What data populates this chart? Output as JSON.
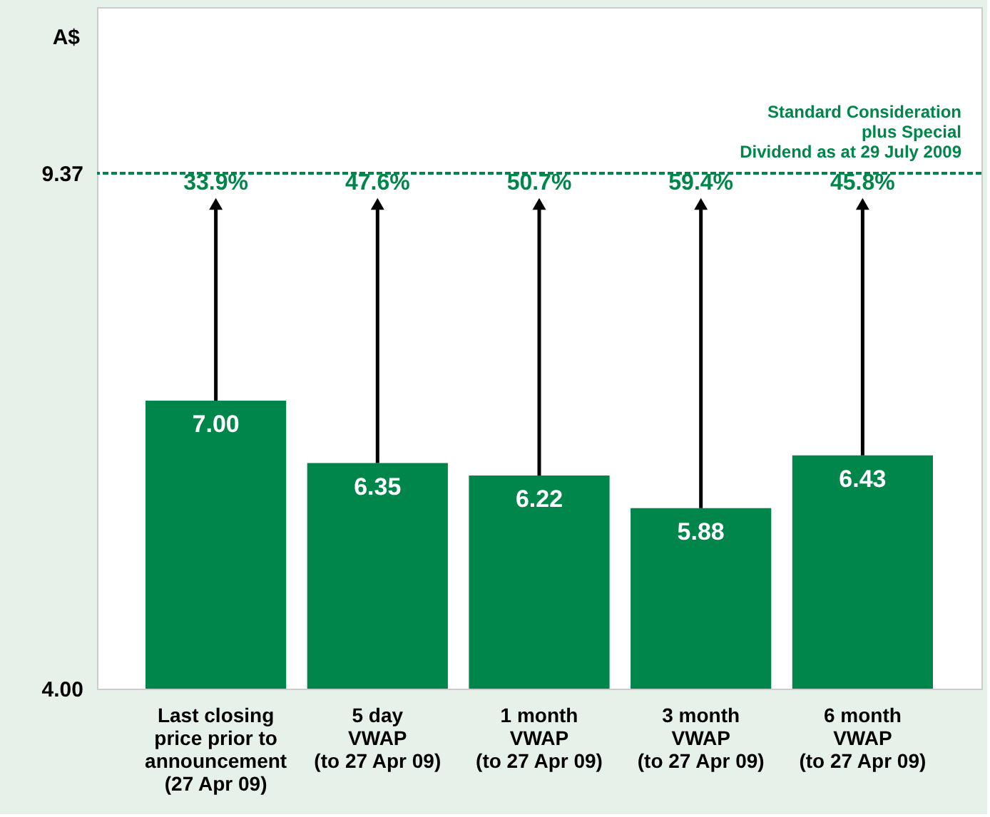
{
  "chart_data": {
    "type": "bar",
    "ylabel": "A$",
    "categories": [
      "Last closing\nprice prior to\nannouncement\n(27 Apr 09)",
      "5 day\nVWAP\n(to 27 Apr 09)",
      "1 month\nVWAP\n(to 27 Apr 09)",
      "3 month\nVWAP\n(to 27 Apr 09)",
      "6 month\nVWAP\n(to 27 Apr 09)"
    ],
    "values": [
      7.0,
      6.35,
      6.22,
      5.88,
      6.43
    ],
    "color": "#00854a",
    "value_labels": [
      "7.00",
      "6.35",
      "6.22",
      "5.88",
      "6.43"
    ],
    "ylim": [
      4,
      11.1
    ],
    "yticks": [
      {
        "value": 4,
        "label": "4.00"
      },
      {
        "value": 9.37,
        "label": "9.37"
      }
    ],
    "grid": false,
    "ref_lines": [
      {
        "axis": "y",
        "value": 9.37,
        "label": "Standard Consideration\nplus Special\nDividend as at 29 July 2009",
        "color": "#00854a",
        "line_style": "dashed"
      }
    ],
    "annotations": [
      {
        "text": "33.9%",
        "x": "Last closing\nprice prior to\nannouncement\n(27 Apr 09)",
        "y": 9.05
      },
      {
        "text": "47.6%",
        "x": "5 day\nVWAP\n(to 27 Apr 09)",
        "y": 9.05
      },
      {
        "text": "50.7%",
        "x": "1 month\nVWAP\n(to 27 Apr 09)",
        "y": 9.05
      },
      {
        "text": "59.4%",
        "x": "3 month\nVWAP\n(to 27 Apr 09)",
        "y": 9.05
      },
      {
        "text": "45.8%",
        "x": "6 month\nVWAP\n(to 27 Apr 09)",
        "y": 9.05
      }
    ]
  }
}
